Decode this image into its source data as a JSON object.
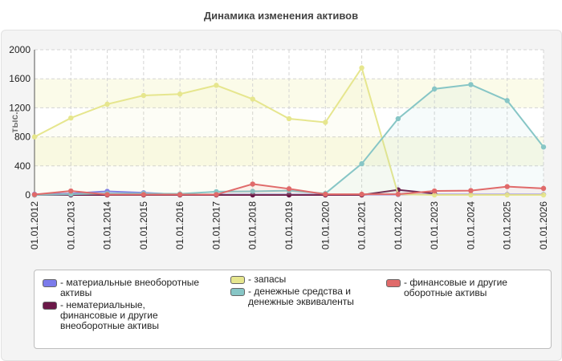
{
  "chart_data": {
    "type": "line",
    "title": "Динамика изменения активов",
    "ylabel": "тыс.",
    "xlabel": "",
    "ylim": [
      0,
      2000
    ],
    "yticks": [
      0,
      400,
      800,
      1200,
      1600,
      2000
    ],
    "grid": true,
    "legend_position": "bottom",
    "categories": [
      "01.01.2012",
      "01.01.2013",
      "01.01.2014",
      "01.01.2015",
      "01.01.2016",
      "01.01.2017",
      "01.01.2018",
      "01.01.2019",
      "01.01.2020",
      "01.01.2021",
      "01.01.2022",
      "01.01.2023",
      "01.01.2024",
      "01.01.2025",
      "01.01.2026"
    ],
    "series": [
      {
        "name": "- материальные внеоборотные активы",
        "color": "#7b7beb",
        "values": [
          10,
          20,
          50,
          30,
          5,
          5,
          5,
          5,
          5,
          5,
          5,
          5,
          5,
          5,
          5
        ]
      },
      {
        "name": "- нематериальные, финансовые и другие внеоборотные активы",
        "color": "#6b1848",
        "values": [
          0,
          0,
          0,
          0,
          0,
          0,
          0,
          0,
          0,
          0,
          70,
          20,
          null,
          null,
          null
        ]
      },
      {
        "name": "- запасы",
        "color": "#e6e68e",
        "values": [
          800,
          1060,
          1250,
          1370,
          1390,
          1510,
          1320,
          1050,
          1000,
          1750,
          10,
          0,
          0,
          0,
          0
        ]
      },
      {
        "name": "- денежные средства и денежные эквиваленты",
        "color": "#87c6c6",
        "values": [
          0,
          10,
          20,
          20,
          15,
          45,
          50,
          60,
          20,
          430,
          1050,
          1460,
          1520,
          1300,
          660
        ]
      },
      {
        "name": "- финансовые и другие оборотные активы",
        "color": "#e06a6a",
        "values": [
          5,
          55,
          5,
          5,
          5,
          5,
          150,
          85,
          10,
          10,
          10,
          55,
          60,
          115,
          90
        ]
      }
    ]
  },
  "legend_items": [
    {
      "label": "- материальные внеоборотные\nактивы",
      "color": "#7b7beb"
    },
    {
      "label": "- нематериальные,\nфинансовые и другие\nвнеоборотные активы",
      "color": "#6b1848"
    },
    {
      "label": "- запасы",
      "color": "#e6e68e"
    },
    {
      "label": "- денежные средства и\nденежные эквиваленты",
      "color": "#87c6c6"
    },
    {
      "label": "- финансовые и другие\nоборотные активы",
      "color": "#e06a6a"
    }
  ]
}
